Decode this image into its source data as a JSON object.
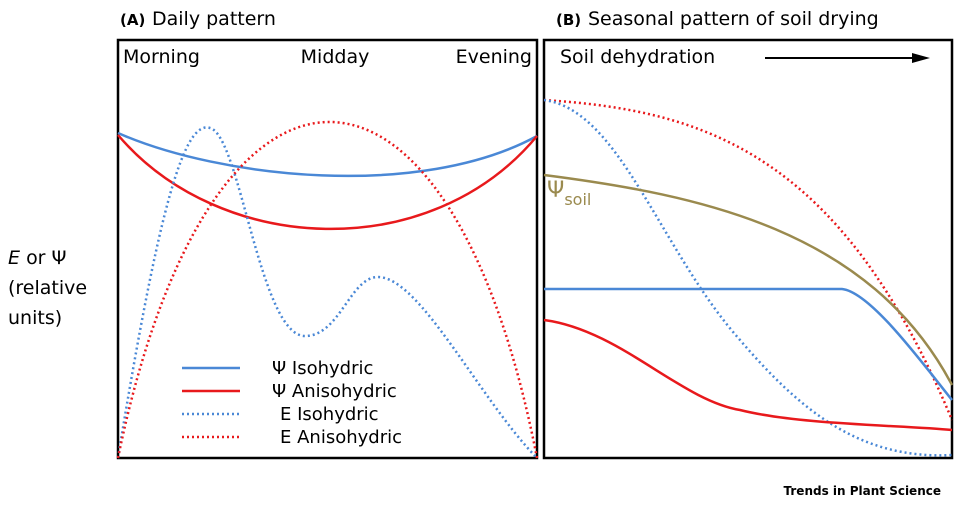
{
  "panels": [
    {
      "letter": "(A)",
      "title": "Daily pattern",
      "labels": [
        "Morning",
        "Midday",
        "Evening"
      ]
    },
    {
      "letter": "(B)",
      "title": "Seasonal pattern of soil drying",
      "arrow_label": "Soil dehydration",
      "curve_label": {
        "symbol": "Ψ",
        "subscript": "soil"
      }
    }
  ],
  "y_label": {
    "italic": "E",
    "rest": "or Ψ",
    "line2": "(relative",
    "line3": "units)"
  },
  "legend": [
    "Ψ Isohydric",
    "Ψ Anisohydric",
    "E Isohydric",
    "E Anisohydric"
  ],
  "footer": "Trends in Plant Science"
}
